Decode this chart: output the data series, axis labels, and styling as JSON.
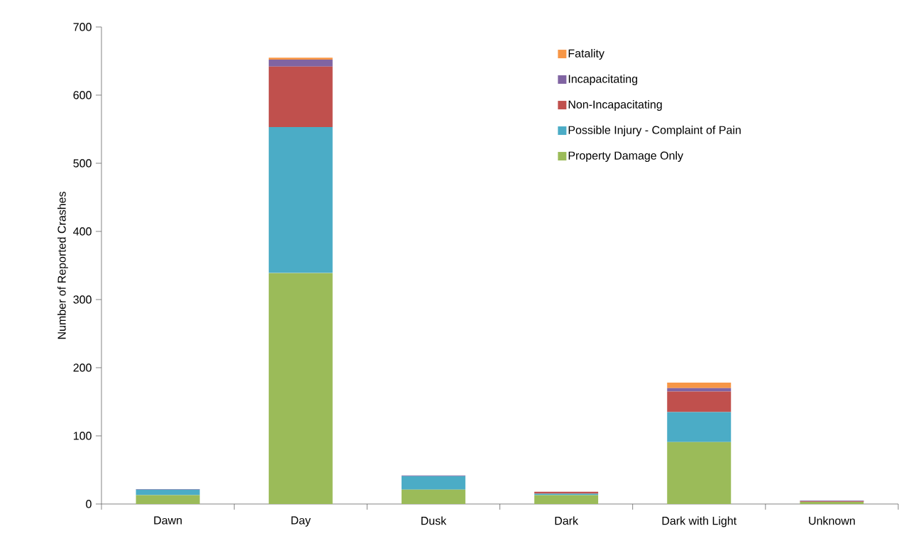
{
  "chart_data": {
    "type": "bar",
    "stacked": true,
    "ylabel": "Number of Reported Crashes",
    "categories": [
      "Dawn",
      "Day",
      "Dusk",
      "Dark",
      "Dark with Light",
      "Unknown"
    ],
    "series": [
      {
        "name": "Property Damage Only",
        "color": "#9bbb59",
        "values": [
          13,
          339,
          21,
          13,
          91,
          3
        ]
      },
      {
        "name": "Possible Injury - Complaint of Pain",
        "color": "#4bacc6",
        "values": [
          8,
          214,
          20,
          2,
          44,
          0
        ]
      },
      {
        "name": "Non-Incapacitating",
        "color": "#c0504d",
        "values": [
          0,
          89,
          0,
          3,
          30,
          1
        ]
      },
      {
        "name": "Incapacitating",
        "color": "#8064a2",
        "values": [
          1,
          10,
          1,
          0,
          5,
          1
        ]
      },
      {
        "name": "Fatality",
        "color": "#f79646",
        "values": [
          0,
          3,
          0,
          0,
          8,
          0
        ]
      }
    ],
    "ylim": [
      0,
      700
    ],
    "yticks": [
      0,
      100,
      200,
      300,
      400,
      500,
      600,
      700
    ],
    "grid": false,
    "legend": "top right"
  }
}
